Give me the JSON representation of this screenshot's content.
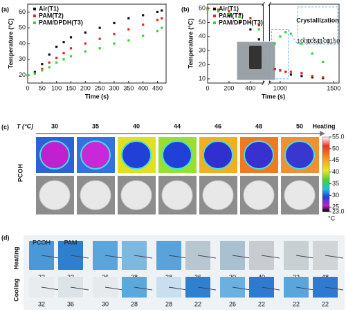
{
  "chart_data": [
    {
      "type": "scatter",
      "panel": "(a)",
      "x_label": "Time (s)",
      "y_label": "Temperature (°C)",
      "xlim": [
        0,
        480
      ],
      "ylim": [
        15,
        65
      ],
      "xticks": [
        0,
        50,
        100,
        150,
        200,
        250,
        300,
        350,
        400,
        450
      ],
      "yticks": [
        20,
        30,
        40,
        50,
        60
      ],
      "legend": "top-left",
      "x": [
        0,
        25,
        50,
        75,
        100,
        125,
        150,
        200,
        250,
        300,
        350,
        400,
        450,
        465
      ],
      "series": [
        {
          "name": "Air(T1)",
          "color": "#111111",
          "values": [
            20,
            22,
            27,
            33,
            38,
            41,
            44,
            47,
            50,
            53,
            56,
            58,
            60,
            61
          ]
        },
        {
          "name": "PAM(T2)",
          "color": "#e8202a",
          "values": [
            20,
            21,
            24,
            28,
            31,
            34,
            37,
            40,
            43,
            46,
            49,
            52,
            55,
            56
          ]
        },
        {
          "name": "PAM/DPDH(T3)",
          "color": "#33d62e",
          "values": [
            20,
            21,
            23,
            25,
            28,
            30,
            32,
            35,
            37,
            40,
            42,
            45,
            48,
            50
          ]
        }
      ]
    },
    {
      "type": "scatter",
      "panel": "(b)",
      "x_label": "Time (s)",
      "y_label": "Temperature (°C)",
      "x_segments": [
        [
          0,
          520
        ],
        [
          900,
          1550
        ]
      ],
      "ylim": [
        7,
        63
      ],
      "xticks": [
        0,
        200,
        400,
        1000,
        1500
      ],
      "yticks": [
        10,
        20,
        30,
        40,
        50,
        60
      ],
      "legend": "top-left",
      "x": [
        0,
        100,
        200,
        300,
        400,
        480,
        950,
        1000,
        1050,
        1100,
        1200,
        1300,
        1400
      ],
      "series": [
        {
          "name": "Air(T1)",
          "color": "#111111",
          "values": [
            60,
            58,
            55,
            50,
            45,
            38,
            17,
            16,
            15,
            13,
            12,
            11,
            10.5
          ]
        },
        {
          "name": "PAM(T2)",
          "color": "#e8202a",
          "values": [
            60,
            59,
            58,
            56,
            53,
            48,
            17,
            16,
            15,
            15,
            14,
            12,
            11
          ]
        },
        {
          "name": "PAM/DPDH(T3)",
          "color": "#33d62e",
          "values": [
            59,
            58,
            56,
            54,
            50,
            45,
            35,
            40,
            43,
            42,
            35,
            28,
            22
          ]
        }
      ],
      "inset": {
        "annotation": "Crystallization",
        "xlim": [
          975,
          1165
        ],
        "xticks": [
          1000,
          1050,
          1100,
          1150
        ]
      }
    }
  ],
  "panel_c": {
    "label": "(c)",
    "axis_label": "T (°C)",
    "arrow_label": "Heating",
    "row_label": "PCOH",
    "temperatures": [
      30,
      35,
      40,
      44,
      46,
      48,
      50
    ],
    "colorbar_ticks": [
      {
        "value": 55,
        "label": "55.0"
      },
      50,
      45,
      40,
      35,
      30,
      25,
      {
        "value": 23,
        "label": "23.0"
      }
    ],
    "colorbar_unit": "°C"
  },
  "panel_d": {
    "label": "(d)",
    "sample_labels": [
      "PCOH",
      "PAM"
    ],
    "rows": [
      {
        "name": "Heating",
        "pairs": [
          [
            22,
            22
          ],
          [
            26,
            28
          ],
          [
            28,
            36
          ],
          [
            30,
            40
          ],
          [
            32,
            48
          ]
        ]
      },
      {
        "name": "Cooling",
        "pairs": [
          [
            32,
            36
          ],
          [
            30,
            28
          ],
          [
            28,
            22
          ],
          [
            26,
            22
          ],
          [
            22,
            22
          ]
        ]
      }
    ]
  }
}
